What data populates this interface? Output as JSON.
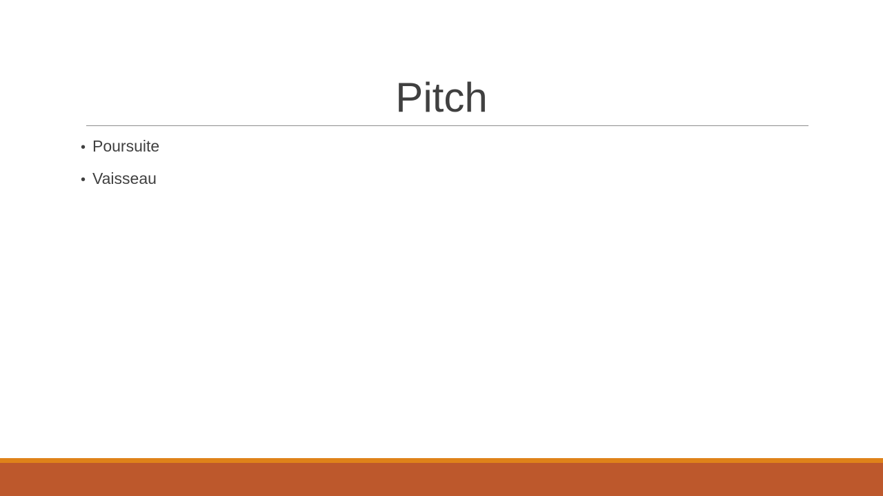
{
  "slide": {
    "title": "Pitch",
    "bullets": [
      {
        "marker": "•",
        "text": "Poursuite"
      },
      {
        "marker": "•",
        "text": "Vaisseau"
      }
    ]
  },
  "colors": {
    "text": "#404040",
    "rule": "#8c8c8c",
    "footer_accent": "#df8219",
    "footer_band": "#bd582c",
    "background": "#ffffff"
  }
}
